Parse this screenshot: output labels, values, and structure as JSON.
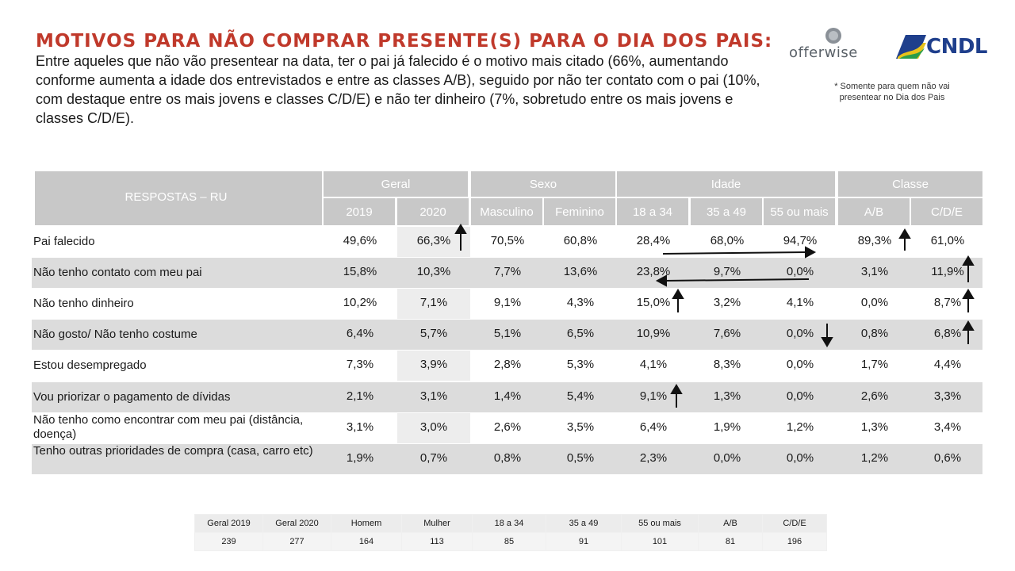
{
  "title": {
    "strong": "MOTIVOS PARA NÃO COMPRAR PRESENTE(S) PARA O DIA DOS PAIS:",
    "text": "Entre aqueles que não vão presentear na data, ter o pai já falecido é o motivo mais citado (66%, aumentando conforme aumenta a idade dos entrevistados e entre as classes A/B), seguido por não ter contato com o pai (10%, com destaque entre os mais jovens e classes C/D/E) e não ter dinheiro (7%, sobretudo entre os mais jovens e classes C/D/E)."
  },
  "logos": {
    "offerwise": "offerwise",
    "cndl": "CNDL"
  },
  "footnote": "* Somente para quem não vai presentear no Dia dos Pais",
  "table": {
    "corner_label": "RESPOSTAS – RU",
    "groups": [
      "Geral",
      "Sexo",
      "Idade",
      "Classe"
    ],
    "columns": [
      "2019",
      "2020",
      "Masculino",
      "Feminino",
      "18 a 34",
      "35 a 49",
      "55 ou mais",
      "A/B",
      "C/D/E"
    ],
    "rows": [
      {
        "label": "Pai falecido",
        "values": [
          "49,6%",
          "66,3%",
          "70,5%",
          "60,8%",
          "28,4%",
          "68,0%",
          "94,7%",
          "89,3%",
          "61,0%"
        ]
      },
      {
        "label": "Não tenho contato com meu pai",
        "values": [
          "15,8%",
          "10,3%",
          "7,7%",
          "13,6%",
          "23,8%",
          "9,7%",
          "0,0%",
          "3,1%",
          "11,9%"
        ]
      },
      {
        "label": "Não tenho dinheiro",
        "values": [
          "10,2%",
          "7,1%",
          "9,1%",
          "4,3%",
          "15,0%",
          "3,2%",
          "4,1%",
          "0,0%",
          "8,7%"
        ]
      },
      {
        "label": "Não gosto/ Não tenho costume",
        "values": [
          "6,4%",
          "5,7%",
          "5,1%",
          "6,5%",
          "10,9%",
          "7,6%",
          "0,0%",
          "0,8%",
          "6,8%"
        ]
      },
      {
        "label": "Estou desempregado",
        "values": [
          "7,3%",
          "3,9%",
          "2,8%",
          "5,3%",
          "4,1%",
          "8,3%",
          "0,0%",
          "1,7%",
          "4,4%"
        ]
      },
      {
        "label": "Vou priorizar o pagamento de dívidas",
        "values": [
          "2,1%",
          "3,1%",
          "1,4%",
          "5,4%",
          "9,1%",
          "1,3%",
          "0,0%",
          "2,6%",
          "3,3%"
        ]
      },
      {
        "label": "Não tenho como encontrar com meu pai (distância, doença)",
        "values": [
          "3,1%",
          "3,0%",
          "2,6%",
          "3,5%",
          "6,4%",
          "1,9%",
          "1,2%",
          "1,3%",
          "3,4%"
        ]
      },
      {
        "label": "Tenho outras prioridades de compra (casa, carro etc)",
        "values": [
          "1,9%",
          "0,7%",
          "0,8%",
          "0,5%",
          "2,3%",
          "0,0%",
          "0,0%",
          "1,2%",
          "0,6%"
        ]
      }
    ]
  },
  "base": {
    "headers": [
      "Geral 2019",
      "Geral 2020",
      "Homem",
      "Mulher",
      "18 a 34",
      "35 a 49",
      "55 ou mais",
      "A/B",
      "C/D/E"
    ],
    "values": [
      "239",
      "277",
      "164",
      "113",
      "85",
      "91",
      "101",
      "81",
      "196"
    ]
  },
  "colors": {
    "title": "#c0392b",
    "header_bg": "#c8c8c8",
    "band_bg": "#dcdcdc",
    "cndl_blue": "#1f3f8c"
  }
}
